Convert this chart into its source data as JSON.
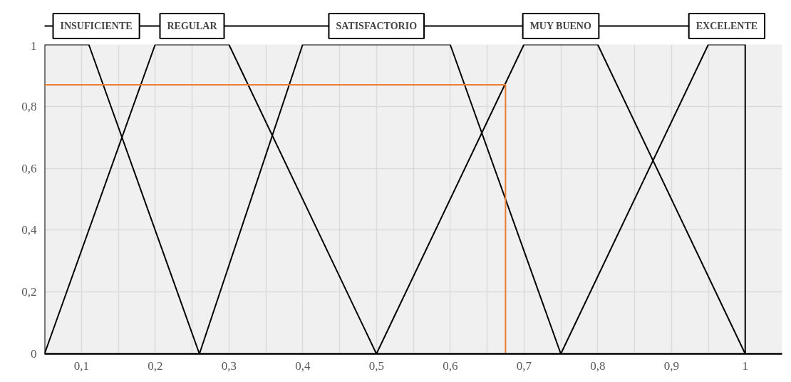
{
  "chart_data": {
    "type": "line",
    "xlim": [
      0.05,
      1.05
    ],
    "ylim": [
      0,
      1
    ],
    "xticks": [
      {
        "value": 0.1,
        "label": "0,1"
      },
      {
        "value": 0.15,
        "label": null
      },
      {
        "value": 0.2,
        "label": "0,2"
      },
      {
        "value": 0.25,
        "label": null
      },
      {
        "value": 0.3,
        "label": "0,3"
      },
      {
        "value": 0.35,
        "label": null
      },
      {
        "value": 0.4,
        "label": "0,4"
      },
      {
        "value": 0.45,
        "label": null
      },
      {
        "value": 0.5,
        "label": "0,5"
      },
      {
        "value": 0.55,
        "label": null
      },
      {
        "value": 0.6,
        "label": "0,6"
      },
      {
        "value": 0.65,
        "label": null
      },
      {
        "value": 0.7,
        "label": "0,7"
      },
      {
        "value": 0.75,
        "label": null
      },
      {
        "value": 0.8,
        "label": "0,8"
      },
      {
        "value": 0.85,
        "label": null
      },
      {
        "value": 0.9,
        "label": "0,9"
      },
      {
        "value": 0.95,
        "label": null
      },
      1,
      {
        "value": 1.05,
        "label": null
      }
    ],
    "yticks": [
      0,
      {
        "value": 0.2,
        "label": "0,2"
      },
      {
        "value": 0.4,
        "label": "0,4"
      },
      {
        "value": 0.6,
        "label": "0,6"
      },
      {
        "value": 0.8,
        "label": "0,8"
      },
      1
    ],
    "grid": true,
    "legend": false,
    "marker": "none",
    "line_style": "solid",
    "series": [
      {
        "name": "INSUFICIENTE",
        "color": "#000000",
        "x": [
          0.05,
          0.05,
          0.11,
          0.26
        ],
        "values": [
          0,
          1,
          1,
          0
        ]
      },
      {
        "name": "REGULAR",
        "color": "#000000",
        "x": [
          0.05,
          0.2,
          0.3,
          0.5
        ],
        "values": [
          0,
          1,
          1,
          0
        ]
      },
      {
        "name": "SATISFACTORIO",
        "color": "#000000",
        "x": [
          0.26,
          0.4,
          0.6,
          0.75
        ],
        "values": [
          0,
          1,
          1,
          0
        ]
      },
      {
        "name": "MUY BUENO",
        "color": "#000000",
        "x": [
          0.5,
          0.7,
          0.8,
          1.0
        ],
        "values": [
          0,
          1,
          1,
          0
        ]
      },
      {
        "name": "EXCELENTE",
        "color": "#000000",
        "x": [
          0.75,
          0.95,
          1.0,
          1.0
        ],
        "values": [
          0,
          1,
          1,
          0
        ]
      },
      {
        "color": "#ed7d31",
        "x": [
          0.05,
          0.675,
          0.675
        ],
        "values": [
          0.87,
          0.87,
          0
        ]
      }
    ]
  }
}
